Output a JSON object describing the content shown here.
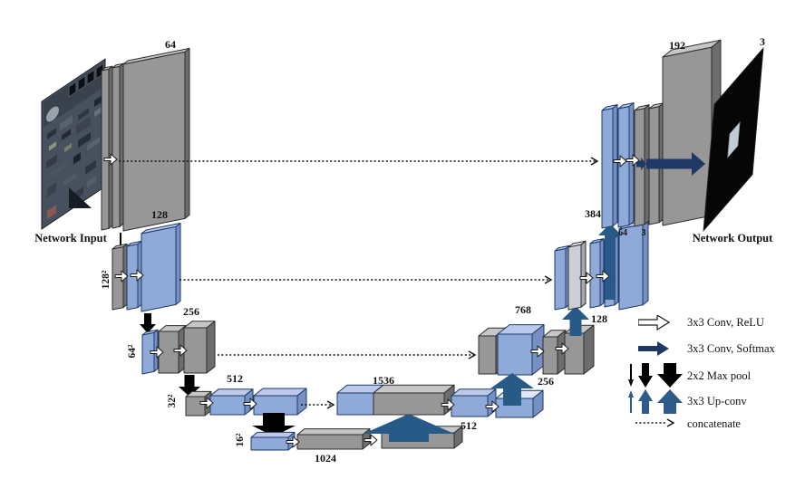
{
  "captions": {
    "input": "Network Input",
    "output": "Network Output"
  },
  "labels": {
    "enc_64": "64",
    "enc_128": "128",
    "enc_256": "256",
    "enc_512": "512",
    "bottleneck_1024": "1024",
    "dec_1536": "1536",
    "dec_512": "512",
    "up_256": "256",
    "dec_768": "768",
    "up_128": "128",
    "dec_384": "384",
    "dec_64": "64",
    "dec_3": "3",
    "dec_192": "192",
    "out_3": "3",
    "res_128": "128²",
    "res_64": "64²",
    "res_32": "32²",
    "res_16": "16²"
  },
  "legend": {
    "items": [
      {
        "icon": "white-right-arrow",
        "label": "3x3 Conv, ReLU"
      },
      {
        "icon": "navy-right-arrow",
        "label": "3x3 Conv, Softmax"
      },
      {
        "icon": "black-down-arrows",
        "label": "2x2 Max pool"
      },
      {
        "icon": "blue-up-arrows",
        "label": "3x3 Up-conv"
      },
      {
        "icon": "dotted-arrow",
        "label": "concatenate"
      }
    ]
  },
  "colors": {
    "feature_gray": "#979797",
    "feature_blue": "#8fa9d8",
    "feature_silver": "#ccd0d6",
    "conv_relu_white": "#ffffff",
    "conv_softmax_navy": "#1f3864",
    "up_conv_steel": "#275a87",
    "max_pool_black": "#000000",
    "skip_dotted": "#111111",
    "output_black": "#060606"
  }
}
